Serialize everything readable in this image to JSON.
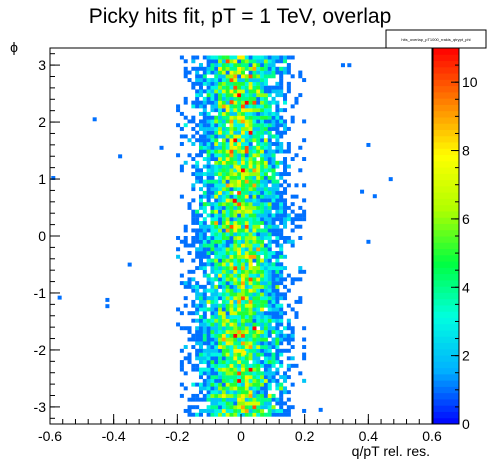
{
  "chart_data": {
    "type": "heatmap",
    "title": "Picky hits fit, pT = 1 TeV, overlap",
    "xlabel": "q/pT rel. res.",
    "ylabel": "ϕ",
    "xlim": [
      -0.6,
      0.6
    ],
    "ylim": [
      -3.3,
      3.3
    ],
    "x_ticks": [
      -0.6,
      -0.4,
      -0.2,
      0,
      0.2,
      0.4,
      0.6
    ],
    "x_tick_labels": [
      "-0.6",
      "-0.4",
      "-0.2",
      "0",
      "0.2",
      "0.4",
      "0.6"
    ],
    "y_ticks": [
      -3,
      -2,
      -1,
      0,
      1,
      2,
      3
    ],
    "y_tick_labels": [
      "-3",
      "-2",
      "-1",
      "0",
      "1",
      "2",
      "3"
    ],
    "colorbar": {
      "min": 0,
      "max": 11,
      "ticks": [
        0,
        2,
        4,
        6,
        8,
        10
      ],
      "tick_labels": [
        "0",
        "2",
        "4",
        "6",
        "8",
        "10"
      ],
      "palette": [
        "#0000ff",
        "#00b0ff",
        "#00ffe0",
        "#00ff40",
        "#b0ff00",
        "#ffff00",
        "#ff8000",
        "#ff0000"
      ]
    },
    "stats_box": {
      "name": "hits_overlap_pT1000_rrakis_qtrypt_phi"
    },
    "distribution": {
      "description": "2D histogram of counts: concentrated band centered near q/pT rel. res. = 0 spanning full phi range",
      "x_center": 0.0,
      "x_sigma": 0.07,
      "bins_x": 100,
      "bins_y": 100,
      "peak_cells": [
        {
          "x": -0.02,
          "y": 0.62,
          "value": 11
        },
        {
          "x": -0.03,
          "y": 2.35,
          "value": 10
        },
        {
          "x": 0.01,
          "y": -2.05,
          "value": 8
        },
        {
          "x": -0.01,
          "y": 1.2,
          "value": 8
        }
      ],
      "outliers": [
        {
          "x": -0.59,
          "y": 1.02,
          "value": 1
        },
        {
          "x": -0.57,
          "y": -1.08,
          "value": 1
        },
        {
          "x": -0.46,
          "y": 2.05,
          "value": 1
        },
        {
          "x": -0.42,
          "y": -1.12,
          "value": 1
        },
        {
          "x": -0.42,
          "y": -1.23,
          "value": 1
        },
        {
          "x": -0.38,
          "y": 1.4,
          "value": 1
        },
        {
          "x": -0.35,
          "y": -0.5,
          "value": 1
        },
        {
          "x": -0.25,
          "y": 1.55,
          "value": 1
        },
        {
          "x": 0.32,
          "y": 3.0,
          "value": 1
        },
        {
          "x": 0.34,
          "y": 3.0,
          "value": 1
        },
        {
          "x": 0.38,
          "y": 0.78,
          "value": 1
        },
        {
          "x": 0.4,
          "y": -0.1,
          "value": 1
        },
        {
          "x": 0.4,
          "y": 1.6,
          "value": 1
        },
        {
          "x": 0.42,
          "y": 0.7,
          "value": 1
        },
        {
          "x": 0.47,
          "y": 1.0,
          "value": 1
        },
        {
          "x": 0.25,
          "y": -3.05,
          "value": 1
        }
      ]
    }
  }
}
